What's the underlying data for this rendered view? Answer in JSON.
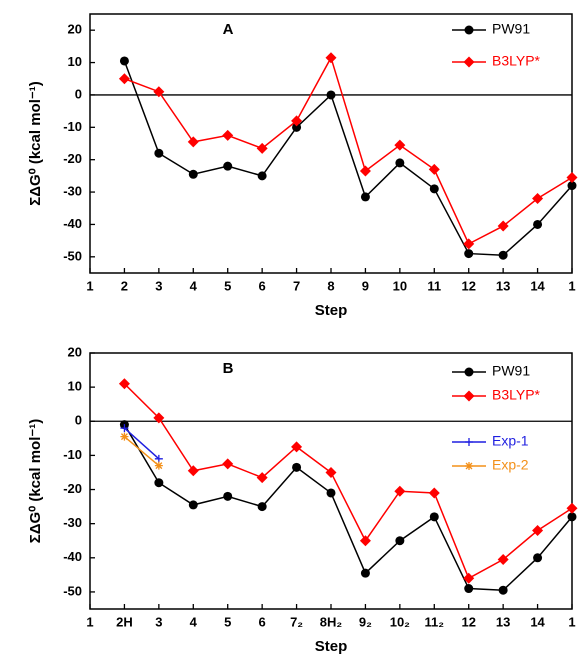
{
  "chart_data": [
    {
      "type": "line",
      "title": "A",
      "xlabel": "Step",
      "ylabel": "ΣΔG⁰ (kcal mol⁻¹)",
      "categories": [
        "1",
        "2",
        "3",
        "4",
        "5",
        "6",
        "7",
        "8",
        "9",
        "10",
        "11",
        "12",
        "13",
        "14",
        "1"
      ],
      "series": [
        {
          "name": "PW91",
          "color": "#000000",
          "marker": "circle",
          "values": [
            null,
            10.5,
            -18,
            -24.5,
            -22,
            -25,
            -10,
            0,
            -31.5,
            -21,
            -29,
            -49,
            -49.5,
            -40,
            -28
          ]
        },
        {
          "name": "B3LYP*",
          "color": "#ff0000",
          "marker": "diamond",
          "values": [
            null,
            5,
            1,
            -14.5,
            -12.5,
            -16.5,
            -8,
            11.5,
            -23.5,
            -15.5,
            -23,
            -46,
            -40.5,
            -32,
            -25.5
          ]
        }
      ],
      "ylim": [
        -55,
        25
      ],
      "yticks": [
        -50,
        -40,
        -30,
        -20,
        -10,
        0,
        10,
        20
      ],
      "zero_line": true
    },
    {
      "type": "line",
      "title": "B",
      "xlabel": "Step",
      "ylabel": "ΣΔG⁰ (kcal mol⁻¹)",
      "categories": [
        "1",
        "2H",
        "3",
        "4",
        "5",
        "6",
        "7₂",
        "8H₂",
        "9₂",
        "10₂",
        "11₂",
        "12",
        "13",
        "14",
        "1"
      ],
      "series": [
        {
          "name": "PW91",
          "color": "#000000",
          "marker": "circle",
          "values": [
            null,
            -1,
            -18,
            -24.5,
            -22,
            -25,
            -13.5,
            -21,
            -44.5,
            -35,
            -28,
            -49,
            -49.5,
            -40,
            -28
          ]
        },
        {
          "name": "B3LYP*",
          "color": "#ff0000",
          "marker": "diamond",
          "values": [
            null,
            11,
            1,
            -14.5,
            -12.5,
            -16.5,
            -7.5,
            -15,
            -35,
            -20.5,
            -21,
            -46,
            -40.5,
            -32,
            -25.5
          ]
        },
        {
          "name": "Exp-1",
          "color": "#1f1fe0",
          "marker": "plus",
          "values": [
            null,
            -2,
            -11,
            null,
            null,
            null,
            null,
            null,
            null,
            null,
            null,
            null,
            null,
            null,
            null
          ]
        },
        {
          "name": "Exp-2",
          "color": "#f39019",
          "marker": "star",
          "values": [
            null,
            -4.5,
            -13,
            null,
            null,
            null,
            null,
            null,
            null,
            null,
            null,
            null,
            null,
            null,
            null
          ]
        }
      ],
      "ylim": [
        -55,
        20
      ],
      "yticks": [
        -50,
        -40,
        -30,
        -20,
        -10,
        0,
        10,
        20
      ],
      "zero_line": true
    }
  ]
}
